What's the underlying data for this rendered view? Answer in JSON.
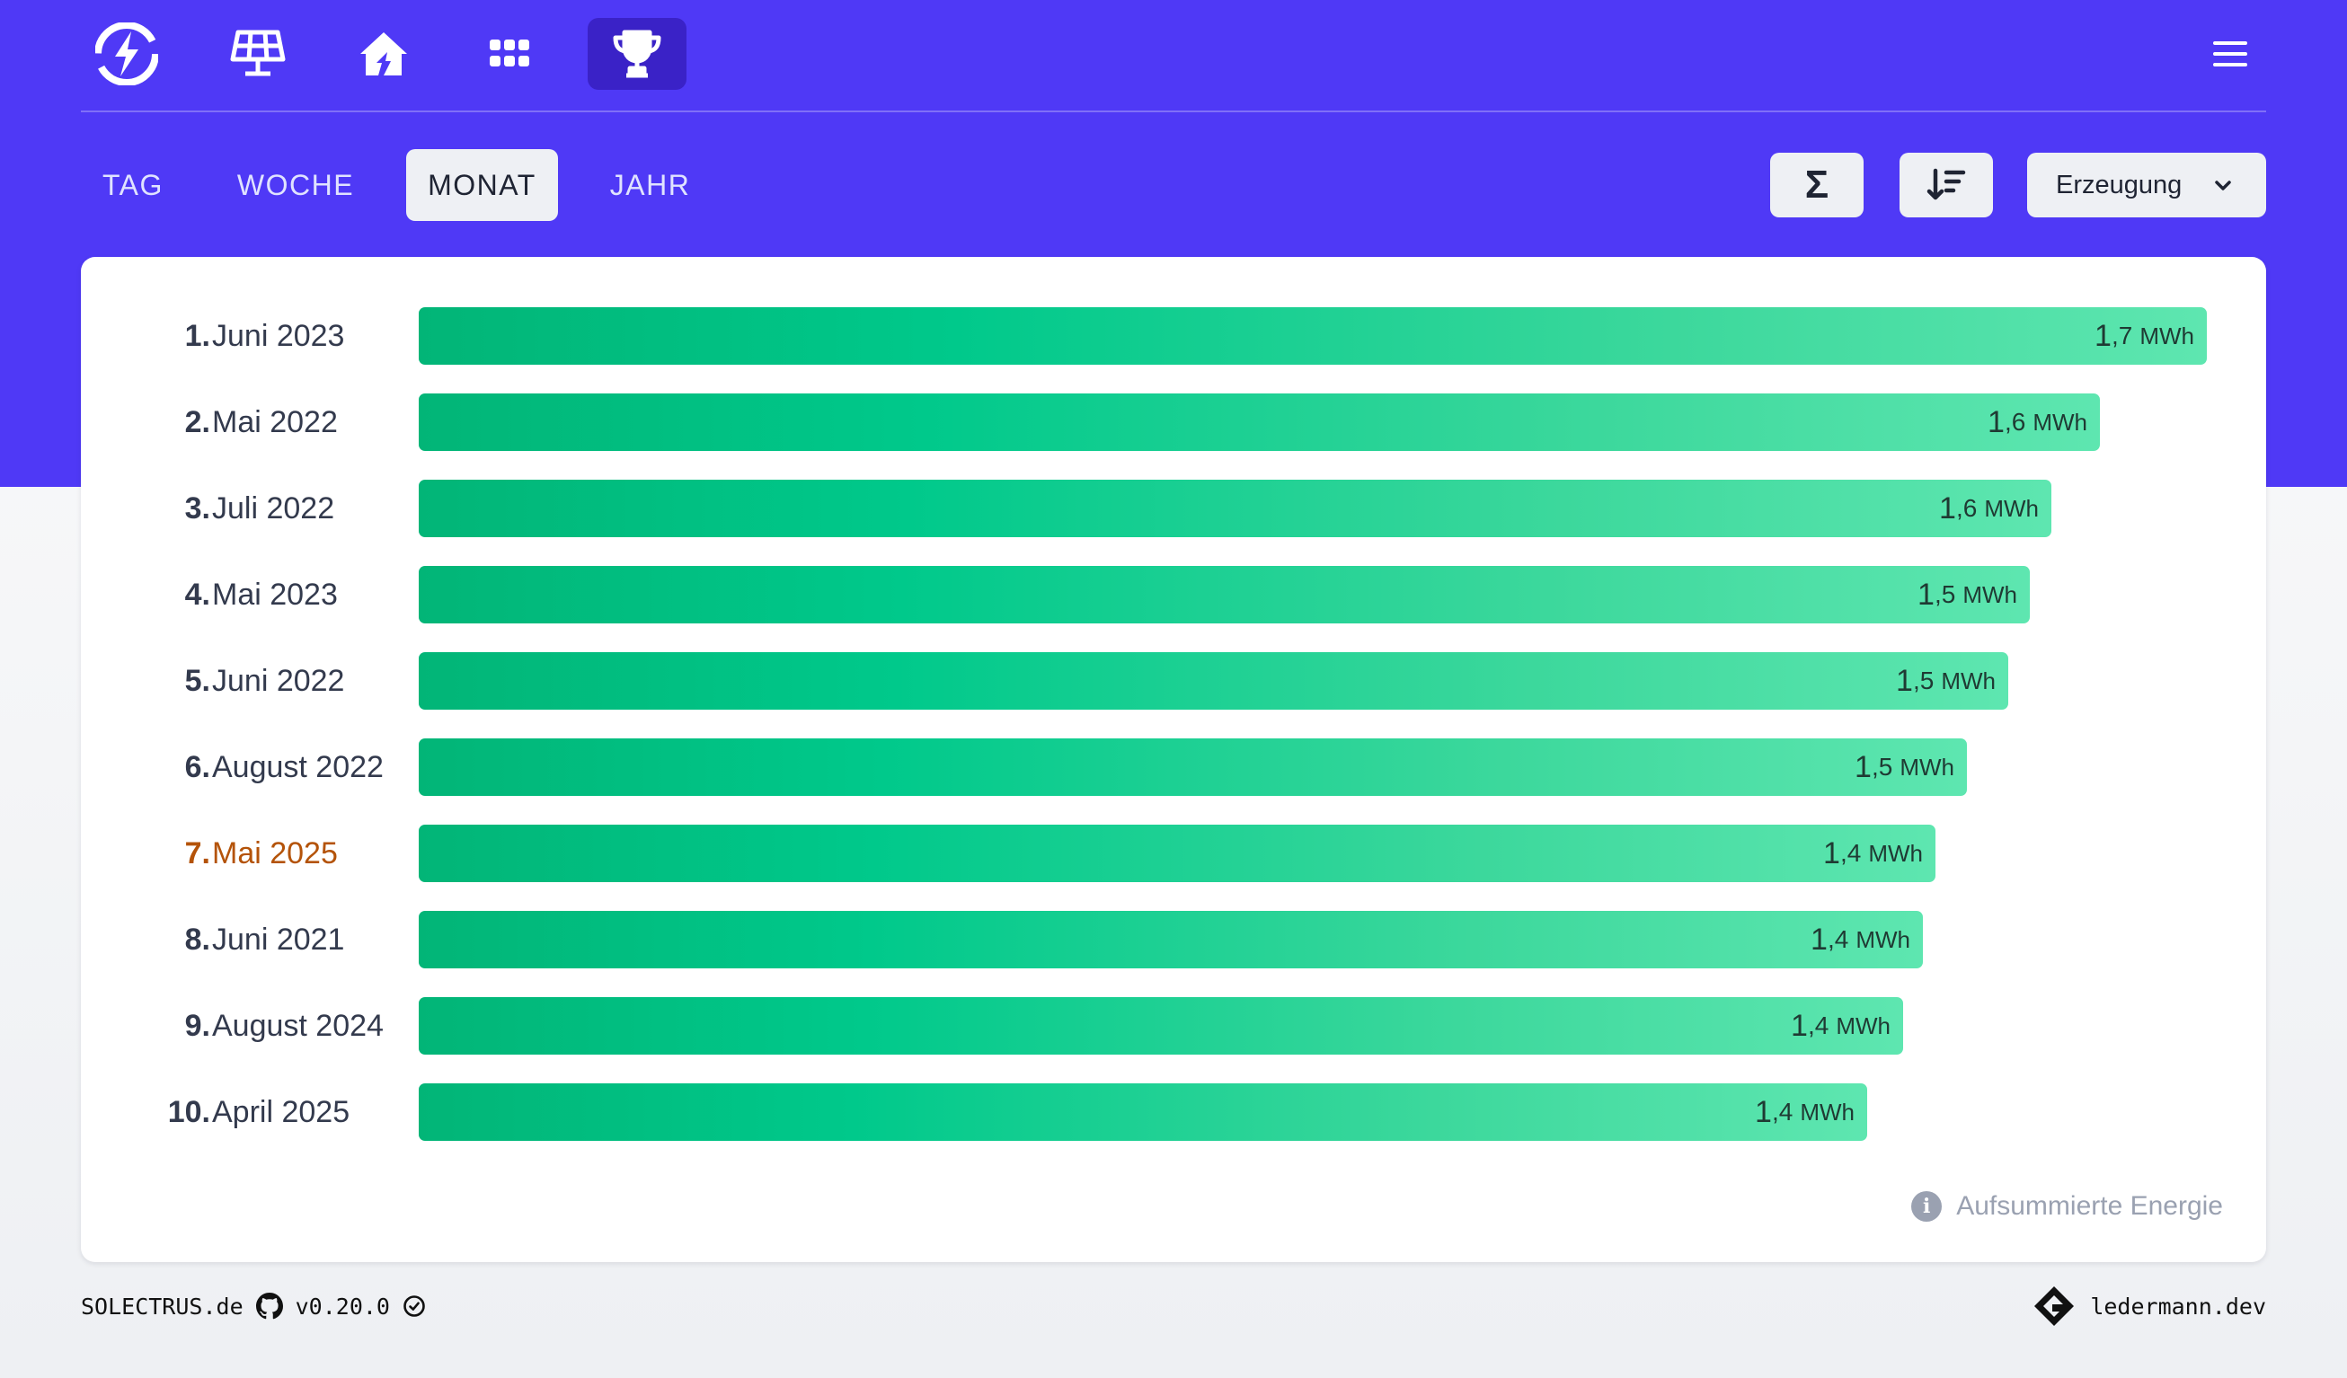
{
  "nav": {
    "items": [
      {
        "icon": "solectrus-logo-icon"
      },
      {
        "icon": "solar-panel-icon"
      },
      {
        "icon": "house-icon"
      },
      {
        "icon": "grid-dots-icon"
      },
      {
        "icon": "trophy-icon",
        "active": true
      }
    ],
    "menu_icon": "hamburger-menu-icon"
  },
  "tabs": [
    {
      "label": "TAG"
    },
    {
      "label": "WOCHE"
    },
    {
      "label": "MONAT",
      "active": true
    },
    {
      "label": "JAHR"
    }
  ],
  "toolbar": {
    "sum_label": "Σ",
    "sort_icon": "sort-descending-icon",
    "select_value": "Erzeugung"
  },
  "ranking": [
    {
      "rank": "1.",
      "period": "Juni 2023",
      "value_int": "1",
      "value_dec": ",7",
      "unit": "MWh",
      "value": 1.7,
      "fraction": 1.0
    },
    {
      "rank": "2.",
      "period": "Mai 2022",
      "value_int": "1",
      "value_dec": ",6",
      "unit": "MWh",
      "value": 1.6,
      "fraction": 0.94
    },
    {
      "rank": "3.",
      "period": "Juli 2022",
      "value_int": "1",
      "value_dec": ",6",
      "unit": "MWh",
      "value": 1.6,
      "fraction": 0.913
    },
    {
      "rank": "4.",
      "period": "Mai 2023",
      "value_int": "1",
      "value_dec": ",5",
      "unit": "MWh",
      "value": 1.5,
      "fraction": 0.901
    },
    {
      "rank": "5.",
      "period": "Juni 2022",
      "value_int": "1",
      "value_dec": ",5",
      "unit": "MWh",
      "value": 1.5,
      "fraction": 0.889
    },
    {
      "rank": "6.",
      "period": "August 2022",
      "value_int": "1",
      "value_dec": ",5",
      "unit": "MWh",
      "value": 1.5,
      "fraction": 0.866
    },
    {
      "rank": "7.",
      "period": "Mai 2025",
      "value_int": "1",
      "value_dec": ",4",
      "unit": "MWh",
      "value": 1.4,
      "fraction": 0.848,
      "current": true
    },
    {
      "rank": "8.",
      "period": "Juni 2021",
      "value_int": "1",
      "value_dec": ",4",
      "unit": "MWh",
      "value": 1.4,
      "fraction": 0.841
    },
    {
      "rank": "9.",
      "period": "August 2024",
      "value_int": "1",
      "value_dec": ",4",
      "unit": "MWh",
      "value": 1.4,
      "fraction": 0.83
    },
    {
      "rank": "10.",
      "period": "April 2025",
      "value_int": "1",
      "value_dec": ",4",
      "unit": "MWh",
      "value": 1.4,
      "fraction": 0.81
    }
  ],
  "info": {
    "label": "Aufsummierte Energie",
    "icon": "info-icon"
  },
  "footer": {
    "site": "SOLECTRUS.de",
    "github_icon": "github-icon",
    "version": "v0.20.0",
    "check_icon": "check-circle-icon",
    "author": "ledermann.dev",
    "author_icon": "ledermann-logo-icon"
  },
  "colors": {
    "header_bg": "#4f39f6",
    "active_nav_bg": "#3a22c7",
    "bar_start": "#02b577",
    "bar_end": "#5ee6b0",
    "current_highlight": "#b45309"
  }
}
